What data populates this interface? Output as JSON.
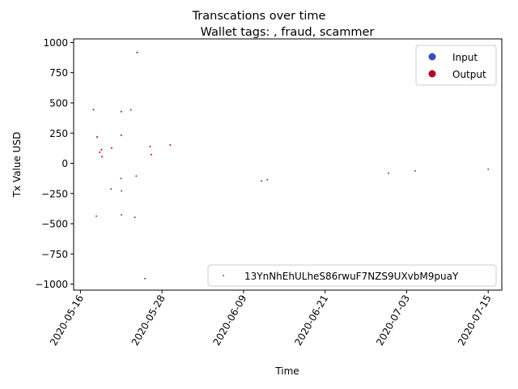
{
  "chart_data": {
    "type": "scatter",
    "title": "Transcations over time",
    "subtitle": "Wallet tags: , fraud, scammer",
    "xlabel": "Time",
    "ylabel": "Tx Value USD",
    "x_ticks": [
      "2020-05-16",
      "2020-05-28",
      "2020-06-09",
      "2020-06-21",
      "2020-07-03",
      "2020-07-15"
    ],
    "y_ticks": [
      1000,
      750,
      500,
      250,
      0,
      -250,
      -500,
      -750,
      -1000
    ],
    "y_tick_labels": [
      "1000",
      "750",
      "500",
      "250",
      "0",
      "−250",
      "−500",
      "−750",
      "−1000"
    ],
    "xlim": [
      "2020-05-15",
      "2020-07-17"
    ],
    "ylim": [
      -1050,
      1030
    ],
    "grid": false,
    "legend_top": {
      "placement": "top-right",
      "entries": [
        {
          "label": "Input",
          "color": "#3b4cc0"
        },
        {
          "label": "Output",
          "color": "#b40426"
        }
      ]
    },
    "legend_bottom": {
      "placement": "bottom-right",
      "entries": [
        {
          "label": "13YnNhEhULheS86rwuF7NZS9UXvbM9puaY",
          "color": "#1f77b4"
        }
      ]
    },
    "series": [
      {
        "name": "Output",
        "color": "#b40426",
        "points": [
          {
            "x": "2020-05-17T22:00",
            "y": 445
          },
          {
            "x": "2020-05-18T11:00",
            "y": 218
          },
          {
            "x": "2020-05-18T20:00",
            "y": 91
          },
          {
            "x": "2020-05-19T02:00",
            "y": 112
          },
          {
            "x": "2020-05-19T04:00",
            "y": 55
          },
          {
            "x": "2020-05-20T14:00",
            "y": 127
          },
          {
            "x": "2020-05-22T00:00",
            "y": 428
          },
          {
            "x": "2020-05-22T00:00",
            "y": 232
          },
          {
            "x": "2020-05-23T10:00",
            "y": 443
          },
          {
            "x": "2020-05-24T08:00",
            "y": 918
          },
          {
            "x": "2020-05-26T06:00",
            "y": 139
          },
          {
            "x": "2020-05-26T10:00",
            "y": 72
          },
          {
            "x": "2020-05-29T05:00",
            "y": 152
          }
        ]
      },
      {
        "name": "Input",
        "color": "#3b4cc0",
        "points": [
          {
            "x": "2020-05-18T08:00",
            "y": -438
          },
          {
            "x": "2020-05-20T12:00",
            "y": -213
          },
          {
            "x": "2020-05-21T23:00",
            "y": -126
          },
          {
            "x": "2020-05-22T01:00",
            "y": -228
          },
          {
            "x": "2020-05-22T01:00",
            "y": -426
          },
          {
            "x": "2020-05-24T00:00",
            "y": -447
          },
          {
            "x": "2020-05-24T05:00",
            "y": -106
          },
          {
            "x": "2020-05-25T12:00",
            "y": -955
          },
          {
            "x": "2020-06-11T15:00",
            "y": -147
          },
          {
            "x": "2020-06-12T12:00",
            "y": -135
          },
          {
            "x": "2020-06-30T08:00",
            "y": -82
          },
          {
            "x": "2020-07-04T06:00",
            "y": -63
          },
          {
            "x": "2020-07-15T00:00",
            "y": -48
          }
        ]
      }
    ]
  }
}
